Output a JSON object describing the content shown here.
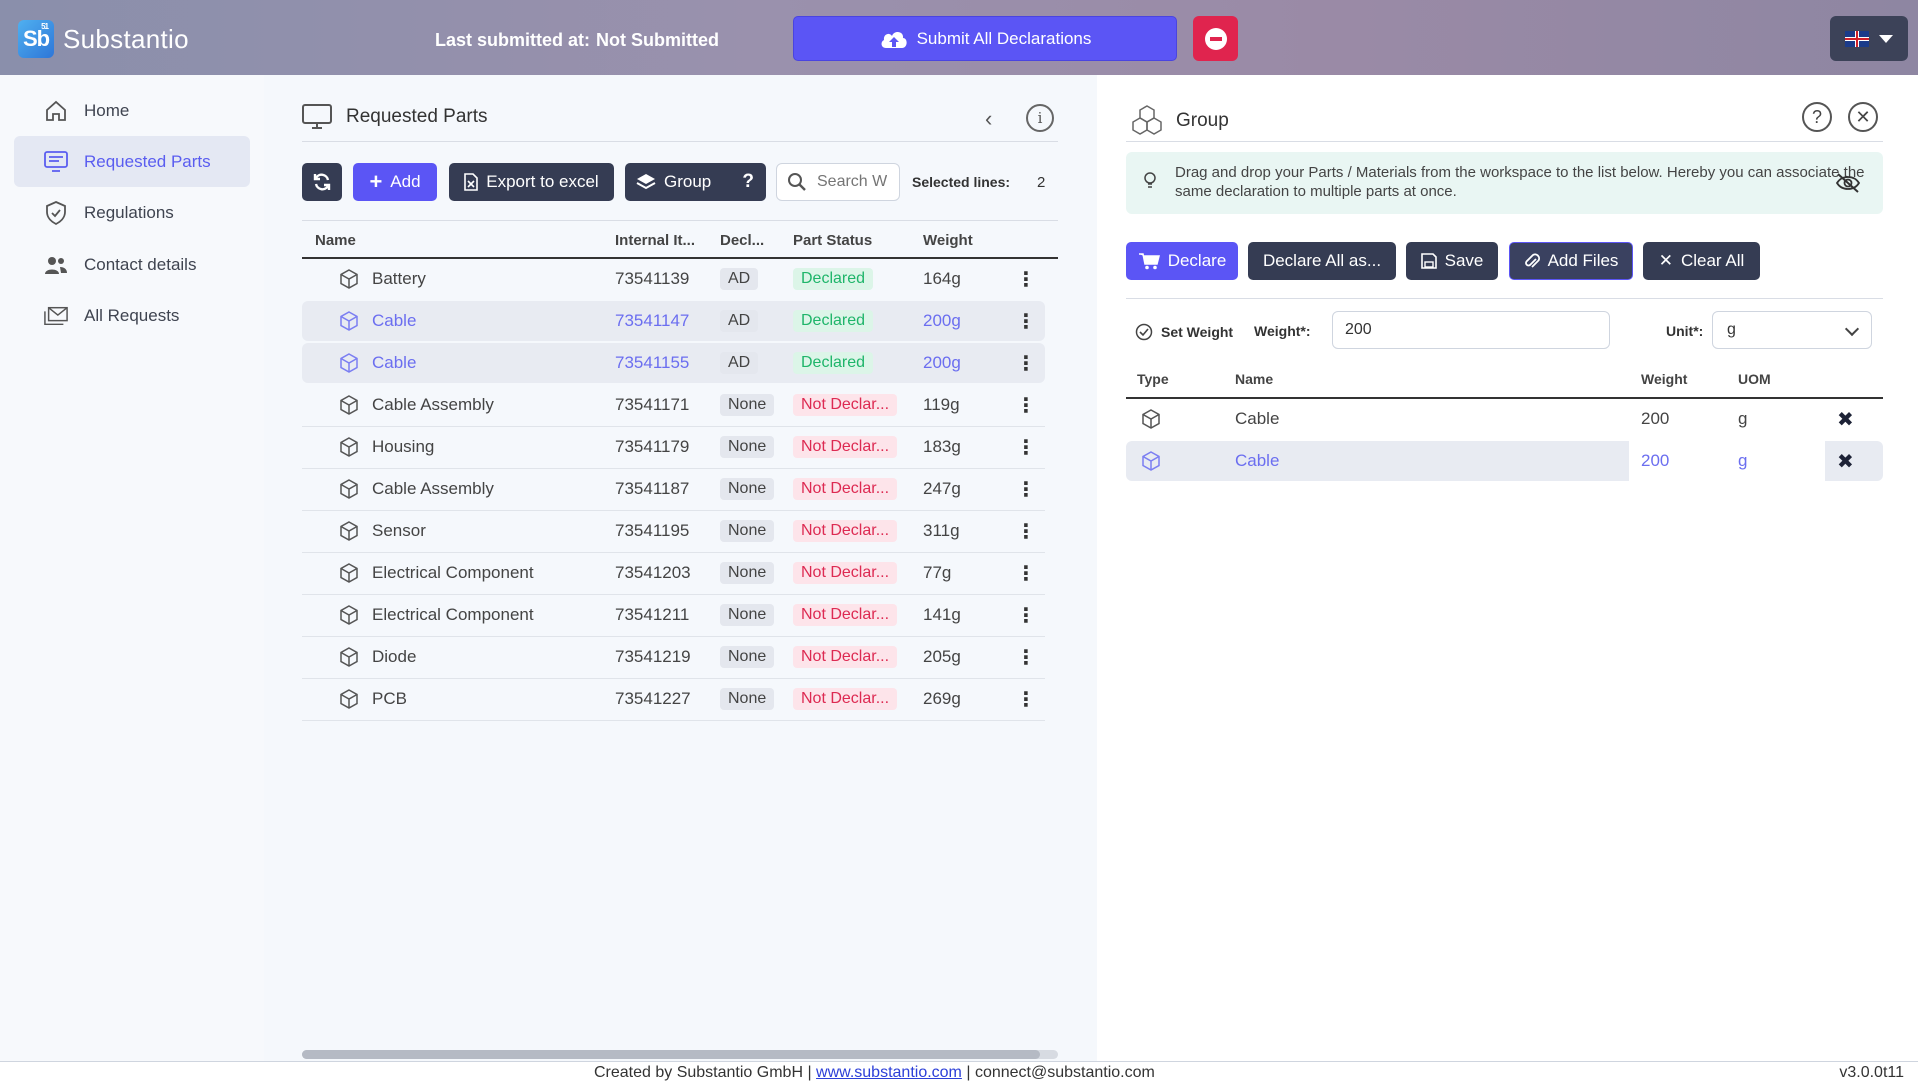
{
  "header": {
    "logo_text": "Sb",
    "logo_sup": "51",
    "brand": "Substantio",
    "last_submitted_label": "Last submitted at:",
    "last_submitted_value": "Not Submitted",
    "submit_label": "Submit All Declarations",
    "language": "en-GB"
  },
  "sidebar": {
    "items": [
      {
        "label": "Home",
        "icon": "home-icon",
        "active": false
      },
      {
        "label": "Requested Parts",
        "icon": "monitor-list-icon",
        "active": true
      },
      {
        "label": "Regulations",
        "icon": "shield-check-icon",
        "active": false
      },
      {
        "label": "Contact details",
        "icon": "people-icon",
        "active": false
      },
      {
        "label": "All Requests",
        "icon": "envelopes-icon",
        "active": false
      }
    ],
    "collapse_glyph": "«"
  },
  "parts": {
    "title": "Requested Parts",
    "toolbar": {
      "add": "Add",
      "export": "Export to excel",
      "group": "Group",
      "group_help": "?",
      "search_placeholder": "Search W",
      "selected_lines_label": "Selected lines:",
      "selected_lines_count": "2"
    },
    "columns": [
      "Name",
      "Internal It...",
      "Decl...",
      "Part Status",
      "Weight"
    ],
    "rows": [
      {
        "name": "Battery",
        "internal": "73541139",
        "decl": "AD",
        "status": "Declared",
        "weight": "164g",
        "selected": false
      },
      {
        "name": "Cable",
        "internal": "73541147",
        "decl": "AD",
        "status": "Declared",
        "weight": "200g",
        "selected": true
      },
      {
        "name": "Cable",
        "internal": "73541155",
        "decl": "AD",
        "status": "Declared",
        "weight": "200g",
        "selected": true
      },
      {
        "name": "Cable Assembly",
        "internal": "73541171",
        "decl": "None",
        "status": "Not Declar...",
        "weight": "119g",
        "selected": false
      },
      {
        "name": "Housing",
        "internal": "73541179",
        "decl": "None",
        "status": "Not Declar...",
        "weight": "183g",
        "selected": false
      },
      {
        "name": "Cable Assembly",
        "internal": "73541187",
        "decl": "None",
        "status": "Not Declar...",
        "weight": "247g",
        "selected": false
      },
      {
        "name": "Sensor",
        "internal": "73541195",
        "decl": "None",
        "status": "Not Declar...",
        "weight": "311g",
        "selected": false
      },
      {
        "name": "Electrical Component",
        "internal": "73541203",
        "decl": "None",
        "status": "Not Declar...",
        "weight": "77g",
        "selected": false
      },
      {
        "name": "Electrical Component",
        "internal": "73541211",
        "decl": "None",
        "status": "Not Declar...",
        "weight": "141g",
        "selected": false
      },
      {
        "name": "Diode",
        "internal": "73541219",
        "decl": "None",
        "status": "Not Declar...",
        "weight": "205g",
        "selected": false
      },
      {
        "name": "PCB",
        "internal": "73541227",
        "decl": "None",
        "status": "Not Declar...",
        "weight": "269g",
        "selected": false
      }
    ]
  },
  "group": {
    "title": "Group",
    "hint": "Drag and drop your Parts / Materials from the workspace to the list below. Hereby you can associate the same declaration to multiple parts at once.",
    "buttons": {
      "declare": "Declare",
      "declare_all": "Declare All as...",
      "save": "Save",
      "add_files": "Add Files",
      "clear_all": "Clear All"
    },
    "set_weight_label": "Set Weight",
    "weight_label": "Weight*:",
    "weight_value": "200",
    "unit_label": "Unit*:",
    "unit_value": "g",
    "columns": [
      "Type",
      "Name",
      "Weight",
      "UOM"
    ],
    "rows": [
      {
        "name": "Cable",
        "weight": "200",
        "uom": "g",
        "selected": false
      },
      {
        "name": "Cable",
        "weight": "200",
        "uom": "g",
        "selected": true
      }
    ]
  },
  "footer": {
    "created_by": "Created by Substantio GmbH |",
    "website": "www.substantio.com",
    "separator": "|",
    "email": "connect@substantio.com",
    "version": "v3.0.0t11"
  },
  "colors": {
    "primary": "#5b55f5",
    "dark_button": "#353c53",
    "declared": "#1fb56a",
    "not_declared": "#dd2a52",
    "stop": "#e0244e"
  }
}
